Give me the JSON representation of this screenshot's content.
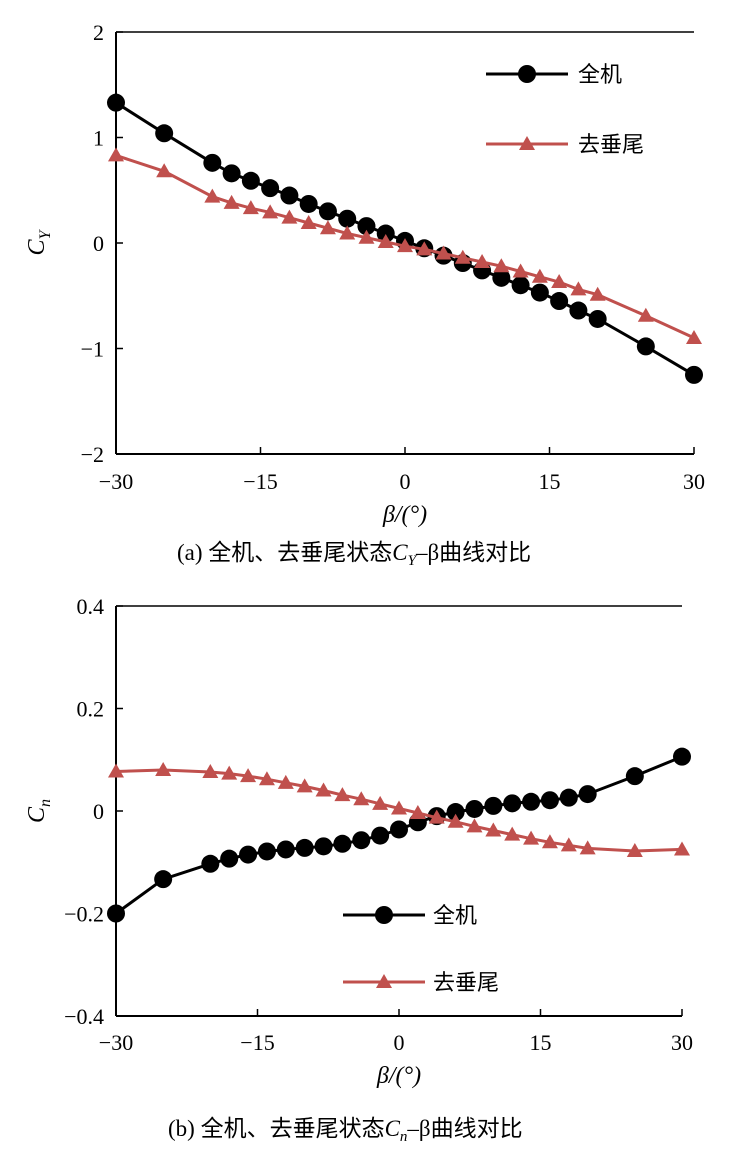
{
  "chart_data": [
    {
      "type": "line",
      "caption_prefix": "(a) 全机、去垂尾状态",
      "caption_var": "C",
      "caption_sub": "Y",
      "caption_suffix": "–β曲线对比",
      "xlabel": "β/(°)",
      "ylabel": "C",
      "ylabel_sub": "Y",
      "xlim": [
        -30,
        30
      ],
      "ylim": [
        -2,
        2
      ],
      "xticks": [
        -30,
        -15,
        0,
        15,
        30
      ],
      "xtick_labels": [
        "−30",
        "−15",
        "0",
        "15",
        "30"
      ],
      "yticks": [
        -2,
        -1,
        0,
        1,
        2
      ],
      "ytick_labels": [
        "−2",
        "−1",
        "0",
        "1",
        "2"
      ],
      "legend_position": "top-right",
      "series": [
        {
          "name": "全机",
          "color": "#000000",
          "marker": "circle",
          "x": [
            -30,
            -25,
            -20,
            -18,
            -16,
            -14,
            -12,
            -10,
            -8,
            -6,
            -4,
            -2,
            0,
            2,
            4,
            6,
            8,
            10,
            12,
            14,
            16,
            18,
            20,
            25,
            30
          ],
          "y": [
            1.33,
            1.04,
            0.76,
            0.66,
            0.59,
            0.52,
            0.45,
            0.37,
            0.3,
            0.23,
            0.16,
            0.09,
            0.02,
            -0.05,
            -0.12,
            -0.19,
            -0.26,
            -0.33,
            -0.4,
            -0.47,
            -0.55,
            -0.64,
            -0.72,
            -0.98,
            -1.25
          ]
        },
        {
          "name": "去垂尾",
          "color": "#c0504d",
          "marker": "triangle",
          "x": [
            -30,
            -25,
            -20,
            -18,
            -16,
            -14,
            -12,
            -10,
            -8,
            -6,
            -4,
            -2,
            0,
            2,
            4,
            6,
            8,
            10,
            12,
            14,
            16,
            18,
            20,
            25,
            30
          ],
          "y": [
            0.83,
            0.68,
            0.44,
            0.38,
            0.33,
            0.29,
            0.24,
            0.19,
            0.14,
            0.09,
            0.05,
            0.01,
            -0.03,
            -0.06,
            -0.1,
            -0.14,
            -0.18,
            -0.22,
            -0.27,
            -0.32,
            -0.37,
            -0.44,
            -0.49,
            -0.69,
            -0.9
          ]
        }
      ]
    },
    {
      "type": "line",
      "caption_prefix": "(b) 全机、去垂尾状态",
      "caption_var": "C",
      "caption_sub": "n",
      "caption_suffix": "–β曲线对比",
      "xlabel": "β/(°)",
      "ylabel": "C",
      "ylabel_sub": "n",
      "xlim": [
        -30,
        30
      ],
      "ylim": [
        -0.4,
        0.4
      ],
      "xticks": [
        -30,
        -15,
        0,
        15,
        30
      ],
      "xtick_labels": [
        "−30",
        "−15",
        "0",
        "15",
        "30"
      ],
      "yticks": [
        -0.4,
        -0.2,
        0,
        0.2,
        0.4
      ],
      "ytick_labels": [
        "−0.4",
        "−0.2",
        "0",
        "0.2",
        "0.4"
      ],
      "legend_position": "bottom-center",
      "series": [
        {
          "name": "全机",
          "color": "#000000",
          "marker": "circle",
          "x": [
            -30,
            -25,
            -20,
            -18,
            -16,
            -14,
            -12,
            -10,
            -8,
            -6,
            -4,
            -2,
            0,
            2,
            4,
            6,
            8,
            10,
            12,
            14,
            16,
            18,
            20,
            25,
            30
          ],
          "y": [
            -0.2,
            -0.133,
            -0.103,
            -0.093,
            -0.085,
            -0.079,
            -0.075,
            -0.072,
            -0.069,
            -0.064,
            -0.057,
            -0.048,
            -0.036,
            -0.022,
            -0.01,
            -0.002,
            0.004,
            0.01,
            0.015,
            0.018,
            0.021,
            0.026,
            0.033,
            0.068,
            0.106
          ]
        },
        {
          "name": "去垂尾",
          "color": "#c0504d",
          "marker": "triangle",
          "x": [
            -30,
            -25,
            -20,
            -18,
            -16,
            -14,
            -12,
            -10,
            -8,
            -6,
            -4,
            -2,
            0,
            2,
            4,
            6,
            8,
            10,
            12,
            14,
            16,
            18,
            20,
            25,
            30
          ],
          "y": [
            0.077,
            0.08,
            0.076,
            0.073,
            0.068,
            0.062,
            0.055,
            0.048,
            0.04,
            0.031,
            0.023,
            0.014,
            0.005,
            -0.004,
            -0.013,
            -0.021,
            -0.03,
            -0.038,
            -0.046,
            -0.054,
            -0.061,
            -0.067,
            -0.073,
            -0.078,
            -0.075
          ]
        }
      ]
    }
  ]
}
